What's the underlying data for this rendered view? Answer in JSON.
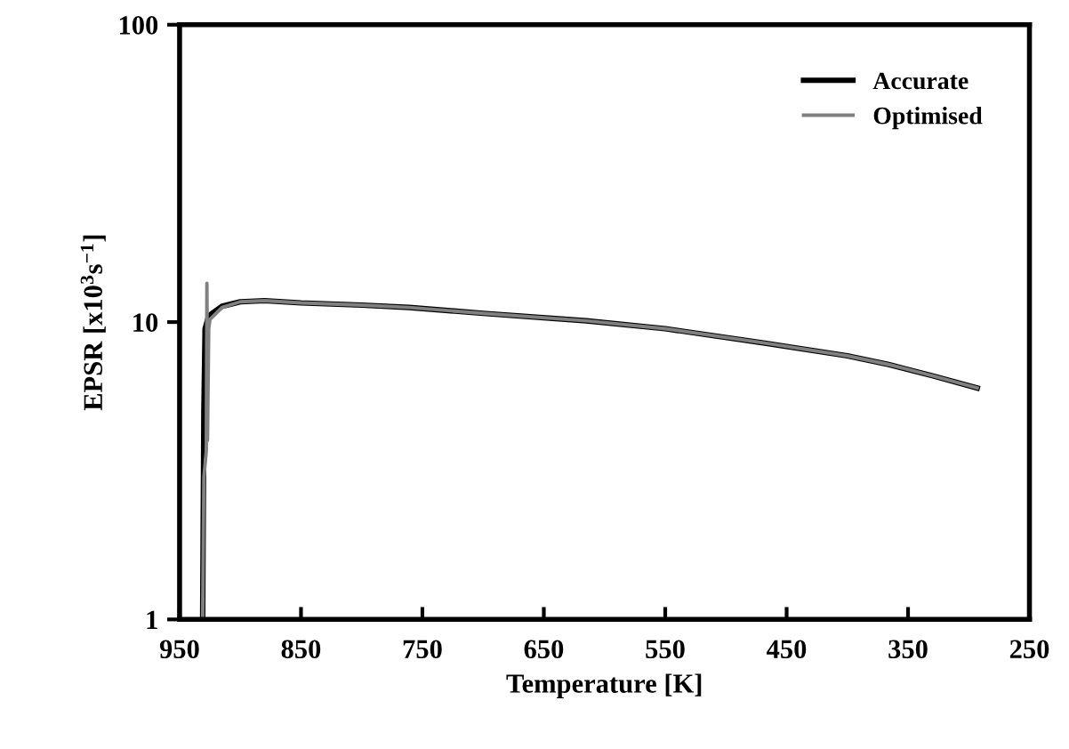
{
  "chart_data": {
    "type": "line",
    "xlabel": "Temperature [K]",
    "ylabel": "EPSR [x10$^{3}$s$^{−1}$]",
    "log": "y",
    "xlim": [
      950,
      250
    ],
    "xticks": [
      950,
      850,
      750,
      650,
      550,
      450,
      350,
      250
    ],
    "ylim": [
      1,
      100
    ],
    "yticks": [
      1,
      10,
      100
    ],
    "grid": false,
    "legend": "top right",
    "marker": "none",
    "line_style": "solid",
    "series": [
      {
        "name": "Accurate",
        "color": "#000000",
        "x": [
          931,
          930,
          929,
          926,
          915,
          900,
          880,
          850,
          800,
          761,
          700,
          615,
          550,
          468,
          400,
          366,
          330,
          293
        ],
        "values": [
          1,
          5,
          9.5,
          10.5,
          11.3,
          11.7,
          11.8,
          11.6,
          11.4,
          11.2,
          10.7,
          10.1,
          9.5,
          8.5,
          7.7,
          7.2,
          6.6,
          6.0
        ]
      },
      {
        "name": "Optimised",
        "color": "#808080",
        "x": [
          931,
          930,
          928,
          927.5,
          927,
          926,
          925,
          915,
          900,
          880,
          850,
          800,
          761,
          700,
          615,
          550,
          468,
          400,
          366,
          330,
          293
        ],
        "values": [
          1,
          3,
          3.7,
          13.5,
          4,
          9.5,
          10.2,
          11.2,
          11.7,
          11.8,
          11.6,
          11.4,
          11.2,
          10.7,
          10.1,
          9.5,
          8.5,
          7.7,
          7.2,
          6.6,
          6.0
        ]
      }
    ]
  }
}
